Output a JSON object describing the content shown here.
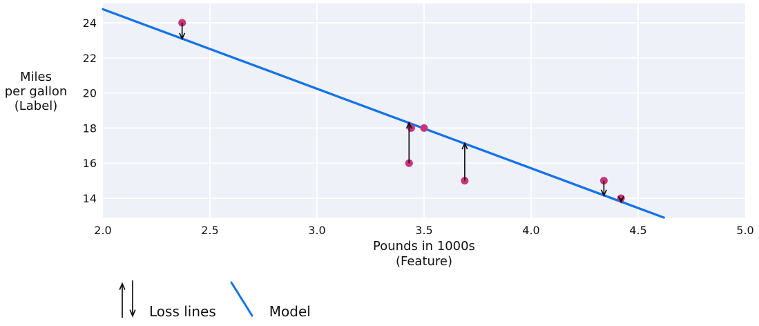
{
  "figure": {
    "background": "#ffffff",
    "plot_background": "#eef1f7",
    "grid_color": "#ffffff",
    "text_color": "#111111",
    "arrow_color": "#111111"
  },
  "axes": {
    "y_label_lines": [
      "Miles",
      "per gallon",
      "(Label)"
    ],
    "x_label_lines": [
      "Pounds in 1000s",
      "(Feature)"
    ]
  },
  "legend": {
    "loss_label": "Loss lines",
    "model_label": "Model",
    "loss_icon": "up-down-arrows-icon",
    "model_icon": "blue-line-segment-icon",
    "model_color": "#1272ec"
  },
  "chart_data": {
    "type": "scatter",
    "title": "",
    "xlabel": "Pounds in 1000s (Feature)",
    "ylabel": "Miles per gallon (Label)",
    "xlim": [
      2.0,
      5.0
    ],
    "ylim": [
      12.9,
      25.1
    ],
    "x_ticks": [
      "2.0",
      "2.5",
      "3.0",
      "3.5",
      "4.0",
      "4.5",
      "5.0"
    ],
    "y_ticks": [
      14,
      16,
      18,
      20,
      22,
      24
    ],
    "grid": true,
    "legend_position": "bottom-left",
    "point_color": "#c9337d",
    "line_color": "#1272ec",
    "points": [
      {
        "x": 2.37,
        "y": 24
      },
      {
        "x": 3.44,
        "y": 18
      },
      {
        "x": 3.5,
        "y": 18
      },
      {
        "x": 3.43,
        "y": 16
      },
      {
        "x": 3.69,
        "y": 15
      },
      {
        "x": 4.34,
        "y": 15
      },
      {
        "x": 4.42,
        "y": 14
      }
    ],
    "model_line": {
      "x1": 2.0,
      "y1": 24.77,
      "x2": 4.62,
      "y2": 12.9,
      "slope": -4.53,
      "intercept": 33.84
    },
    "loss_arrows": [
      {
        "x": 2.37,
        "from_y": 24,
        "to_y": 23.1,
        "direction": "down"
      },
      {
        "x": 3.43,
        "from_y": 16,
        "to_y": 18.29,
        "direction": "up"
      },
      {
        "x": 3.69,
        "from_y": 15,
        "to_y": 17.11,
        "direction": "up"
      },
      {
        "x": 4.34,
        "from_y": 15,
        "to_y": 14.17,
        "direction": "down"
      },
      {
        "x": 4.42,
        "from_y": 14,
        "to_y": 13.8,
        "direction": "down"
      }
    ]
  }
}
